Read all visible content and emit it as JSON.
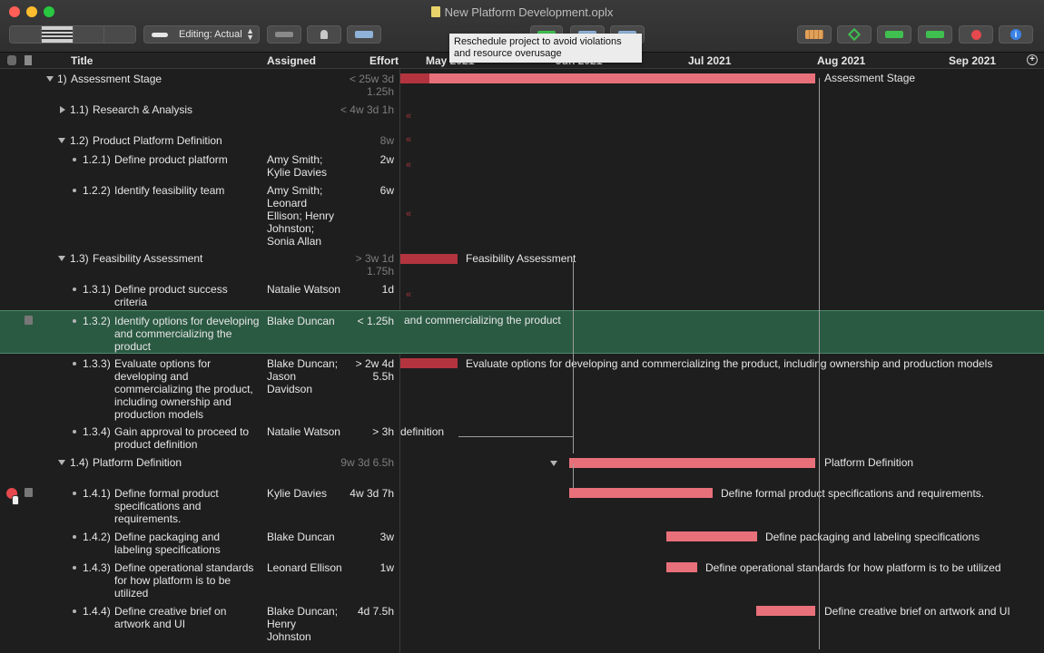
{
  "window": {
    "title": "New Platform Development.oplx"
  },
  "toolbar": {
    "editing_mode": "Editing: Actual",
    "tooltip": "Reschedule project to avoid violations and resource overusage"
  },
  "columns": {
    "title": "Title",
    "assigned": "Assigned",
    "effort": "Effort"
  },
  "timeline": {
    "months": [
      "May 2021",
      "Jun 2021",
      "Jul 2021",
      "Aug 2021",
      "Sep 2021"
    ]
  },
  "rows": [
    {
      "num": "1)",
      "title": "Assessment Stage",
      "assigned": "",
      "effort": "< 25w 3d 1.25h",
      "bar_label": "Assessment Stage"
    },
    {
      "num": "1.1)",
      "title": "Research & Analysis",
      "assigned": "",
      "effort": "< 4w 3d 1h",
      "bar_label": ""
    },
    {
      "num": "1.2)",
      "title": "Product Platform Definition",
      "assigned": "",
      "effort": "8w",
      "bar_label": ""
    },
    {
      "num": "1.2.1)",
      "title": "Define product platform",
      "assigned": "Amy Smith; Kylie Davies",
      "effort": "2w",
      "bar_label": ""
    },
    {
      "num": "1.2.2)",
      "title": "Identify feasibility team",
      "assigned": "Amy Smith; Leonard Ellison; Henry Johnston; Sonia Allan",
      "effort": "6w",
      "bar_label": ""
    },
    {
      "num": "1.3)",
      "title": "Feasibility Assessment",
      "assigned": "",
      "effort": "> 3w 1d 1.75h",
      "bar_label": "Feasibility Assessment"
    },
    {
      "num": "1.3.1)",
      "title": "Define product success criteria",
      "assigned": "Natalie Watson",
      "effort": "1d",
      "bar_label": ""
    },
    {
      "num": "1.3.2)",
      "title": "Identify options for developing and commercializing the product",
      "assigned": "Blake Duncan",
      "effort": "< 1.25h",
      "bar_label": "and commercializing the product"
    },
    {
      "num": "1.3.3)",
      "title": "Evaluate options for developing and commercializing the product, including ownership and production models",
      "assigned": "Blake Duncan; Jason Davidson",
      "effort": "> 2w 4d 5.5h",
      "bar_label": "Evaluate options for developing and commercializing the product, including ownership and production models"
    },
    {
      "num": "1.3.4)",
      "title": "Gain approval to proceed to product definition",
      "assigned": "Natalie Watson",
      "effort": "> 3h",
      "bar_label": "definition"
    },
    {
      "num": "1.4)",
      "title": "Platform Definition",
      "assigned": "",
      "effort": "9w 3d 6.5h",
      "bar_label": "Platform Definition"
    },
    {
      "num": "1.4.1)",
      "title": "Define formal product specifications and requirements.",
      "assigned": "Kylie Davies",
      "effort": "4w 3d 7h",
      "bar_label": "Define formal product specifications and requirements."
    },
    {
      "num": "1.4.2)",
      "title": "Define packaging and labeling specifications",
      "assigned": "Blake Duncan",
      "effort": "3w",
      "bar_label": "Define packaging and labeling specifications"
    },
    {
      "num": "1.4.3)",
      "title": "Define operational standards for how platform is to be utilized",
      "assigned": "Leonard Ellison",
      "effort": "1w",
      "bar_label": "Define operational standards for how platform is to be utilized"
    },
    {
      "num": "1.4.4)",
      "title": "Define creative brief on artwork and UI",
      "assigned": "Blake Duncan; Henry Johnston",
      "effort": "4d 7.5h",
      "bar_label": "Define creative brief on artwork and UI"
    }
  ]
}
